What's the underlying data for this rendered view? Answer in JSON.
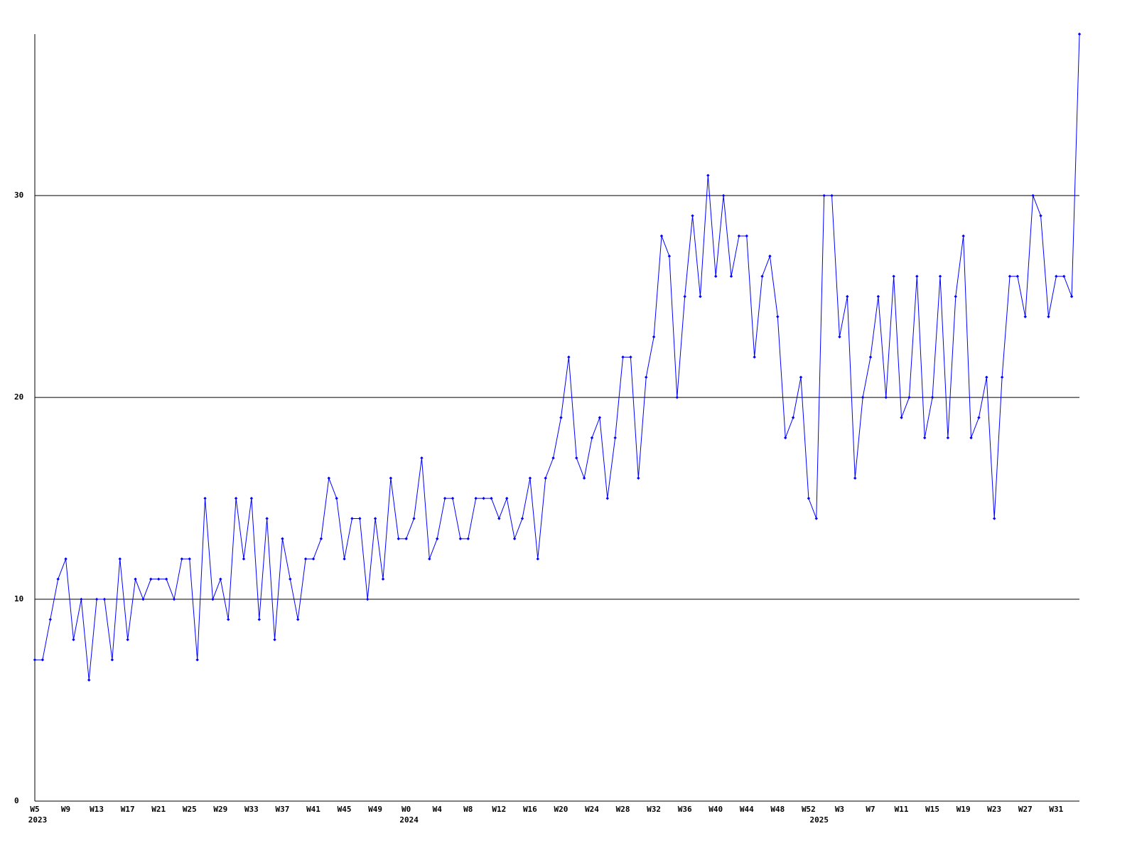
{
  "chart_data": {
    "type": "line",
    "categories": [
      "W5",
      null,
      null,
      null,
      "W9",
      null,
      null,
      null,
      "W13",
      null,
      null,
      null,
      "W17",
      null,
      null,
      null,
      "W21",
      null,
      null,
      null,
      "W25",
      null,
      null,
      null,
      "W29",
      null,
      null,
      null,
      "W33",
      null,
      null,
      null,
      "W37",
      null,
      null,
      null,
      "W41",
      null,
      null,
      null,
      "W45",
      null,
      null,
      null,
      "W49",
      null,
      null,
      null,
      "W0",
      null,
      null,
      null,
      "W4",
      null,
      null,
      null,
      "W8",
      null,
      null,
      null,
      "W12",
      null,
      null,
      null,
      "W16",
      null,
      null,
      null,
      "W20",
      null,
      null,
      null,
      "W24",
      null,
      null,
      null,
      "W28",
      null,
      null,
      null,
      "W32",
      null,
      null,
      null,
      "W36",
      null,
      null,
      null,
      "W40",
      null,
      null,
      null,
      "W44",
      null,
      null,
      null,
      "W48",
      null,
      null,
      null,
      "W52",
      null,
      null,
      null,
      "W3",
      null,
      null,
      null,
      "W7",
      null,
      null,
      null,
      "W11",
      null,
      null,
      null,
      "W15",
      null,
      null,
      null,
      "W19",
      null,
      null,
      null,
      "W23",
      null,
      null,
      null,
      "W27",
      null,
      null,
      null,
      "W31",
      null,
      null,
      null
    ],
    "year_labels": [
      {
        "text": "2023",
        "at": 0
      },
      {
        "text": "2024",
        "at": 48
      },
      {
        "text": "2025",
        "at": 101
      }
    ],
    "series": [
      {
        "color": "#0000ff",
        "values": [
          7,
          7,
          9,
          11,
          12,
          8,
          10,
          6,
          10,
          10,
          7,
          12,
          8,
          11,
          10,
          11,
          11,
          11,
          10,
          12,
          12,
          7,
          15,
          10,
          11,
          9,
          15,
          12,
          15,
          9,
          14,
          8,
          13,
          11,
          9,
          12,
          12,
          13,
          16,
          15,
          12,
          14,
          14,
          10,
          14,
          11,
          16,
          13,
          13,
          14,
          17,
          12,
          13,
          15,
          15,
          13,
          13,
          15,
          15,
          15,
          14,
          15,
          13,
          14,
          16,
          12,
          16,
          17,
          19,
          22,
          17,
          16,
          18,
          19,
          15,
          18,
          22,
          22,
          16,
          21,
          23,
          28,
          27,
          20,
          25,
          29,
          25,
          31,
          26,
          30,
          26,
          28,
          28,
          22,
          26,
          27,
          24,
          18,
          19,
          21,
          15,
          14,
          30,
          30,
          23,
          25,
          16,
          20,
          22,
          25,
          20,
          26,
          19,
          20,
          26,
          18,
          20,
          26,
          18,
          25,
          28,
          18,
          19,
          21,
          14,
          21,
          26,
          26,
          24,
          30,
          29,
          24,
          26,
          26,
          25,
          38
        ]
      }
    ],
    "ylim": [
      0,
      38
    ],
    "yticks": [
      0,
      10,
      20,
      30
    ],
    "grid": true
  }
}
